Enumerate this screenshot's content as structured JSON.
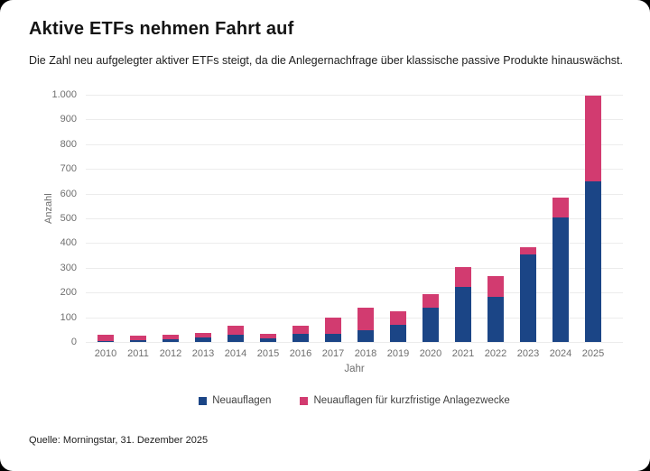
{
  "page": {
    "background_color": "#000000",
    "card_color": "#ffffff"
  },
  "header": {
    "title": "Aktive ETFs nehmen Fahrt auf",
    "subtitle": "Die Zahl neu aufgelegter aktiver ETFs steigt, da die Anlegernachfrage über klassische passive Produkte hinauswächst."
  },
  "chart_data": {
    "type": "bar",
    "stacked": true,
    "title": "Aktive ETFs nehmen Fahrt auf",
    "xlabel": "Jahr",
    "ylabel": "Anzahl",
    "ylim": [
      0,
      1000
    ],
    "ytick_step": 100,
    "ytick_labels": [
      "0",
      "100",
      "200",
      "300",
      "400",
      "500",
      "600",
      "700",
      "800",
      "900",
      "1.000"
    ],
    "grid": true,
    "legend_position": "bottom",
    "categories": [
      "2010",
      "2011",
      "2012",
      "2013",
      "2014",
      "2015",
      "2016",
      "2017",
      "2018",
      "2019",
      "2020",
      "2021",
      "2022",
      "2023",
      "2024",
      "2025"
    ],
    "series": [
      {
        "name": "Neuauflagen",
        "color": "#1b4586",
        "values": [
          5,
          6,
          12,
          18,
          30,
          15,
          32,
          33,
          48,
          69,
          138,
          221,
          182,
          355,
          505,
          650
        ]
      },
      {
        "name": "Neuauflagen für kurzfristige Anlagezwecke",
        "color": "#d23b70",
        "values": [
          23,
          19,
          18,
          17,
          35,
          18,
          33,
          65,
          92,
          56,
          55,
          81,
          86,
          30,
          80,
          345
        ]
      }
    ]
  },
  "footer": {
    "source": "Quelle: Morningstar, 31. Dezember 2025"
  }
}
